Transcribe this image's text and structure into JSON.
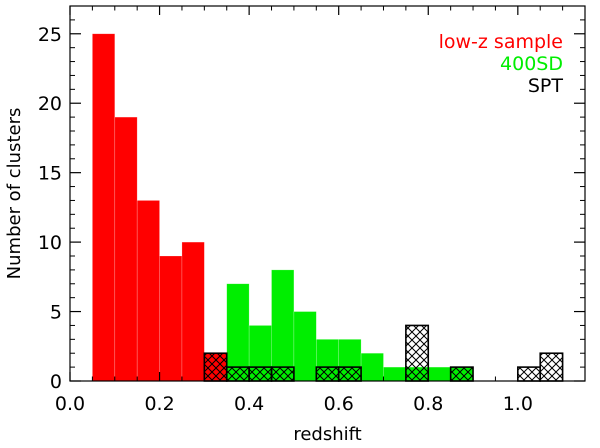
{
  "chart_data": {
    "type": "bar",
    "subtype": "histogram",
    "xlabel": "redshift",
    "ylabel": "Number of clusters",
    "xlim": [
      0.0,
      1.15
    ],
    "ylim": [
      0,
      27
    ],
    "x_ticks": [
      "0.0",
      "0.2",
      "0.4",
      "0.6",
      "0.8",
      "1.0"
    ],
    "y_ticks": [
      "0",
      "5",
      "10",
      "15",
      "20",
      "25"
    ],
    "bin_width": 0.05,
    "series": [
      {
        "name": "low-z sample",
        "color": "#ff0000",
        "fill": "solid",
        "bins": [
          {
            "x0": 0.05,
            "x1": 0.1,
            "count": 25
          },
          {
            "x0": 0.1,
            "x1": 0.15,
            "count": 19
          },
          {
            "x0": 0.15,
            "x1": 0.2,
            "count": 13
          },
          {
            "x0": 0.2,
            "x1": 0.25,
            "count": 9
          },
          {
            "x0": 0.25,
            "x1": 0.3,
            "count": 10
          },
          {
            "x0": 0.3,
            "x1": 0.35,
            "count": 2
          }
        ]
      },
      {
        "name": "400SD",
        "color": "#00ee00",
        "fill": "solid",
        "bins": [
          {
            "x0": 0.35,
            "x1": 0.4,
            "count": 7
          },
          {
            "x0": 0.4,
            "x1": 0.45,
            "count": 4
          },
          {
            "x0": 0.45,
            "x1": 0.5,
            "count": 8
          },
          {
            "x0": 0.5,
            "x1": 0.55,
            "count": 5
          },
          {
            "x0": 0.55,
            "x1": 0.6,
            "count": 3
          },
          {
            "x0": 0.6,
            "x1": 0.65,
            "count": 3
          },
          {
            "x0": 0.65,
            "x1": 0.7,
            "count": 2
          },
          {
            "x0": 0.7,
            "x1": 0.75,
            "count": 1
          },
          {
            "x0": 0.75,
            "x1": 0.8,
            "count": 1
          },
          {
            "x0": 0.8,
            "x1": 0.85,
            "count": 1
          },
          {
            "x0": 0.85,
            "x1": 0.9,
            "count": 1
          }
        ]
      },
      {
        "name": "SPT",
        "color": "#000000",
        "fill": "crosshatch",
        "bins": [
          {
            "x0": 0.3,
            "x1": 0.35,
            "count": 2
          },
          {
            "x0": 0.35,
            "x1": 0.4,
            "count": 1
          },
          {
            "x0": 0.4,
            "x1": 0.45,
            "count": 1
          },
          {
            "x0": 0.45,
            "x1": 0.5,
            "count": 1
          },
          {
            "x0": 0.55,
            "x1": 0.6,
            "count": 1
          },
          {
            "x0": 0.6,
            "x1": 0.65,
            "count": 1
          },
          {
            "x0": 0.75,
            "x1": 0.8,
            "count": 4
          },
          {
            "x0": 0.85,
            "x1": 0.9,
            "count": 1
          },
          {
            "x0": 1.0,
            "x1": 1.05,
            "count": 1
          },
          {
            "x0": 1.05,
            "x1": 1.1,
            "count": 2
          }
        ]
      }
    ],
    "legend": {
      "position": "top-right",
      "entries": [
        {
          "label": "low-z sample",
          "color": "#ff0000"
        },
        {
          "label": "400SD",
          "color": "#00ee00"
        },
        {
          "label": "SPT",
          "color": "#000000"
        }
      ]
    },
    "grid": false
  }
}
